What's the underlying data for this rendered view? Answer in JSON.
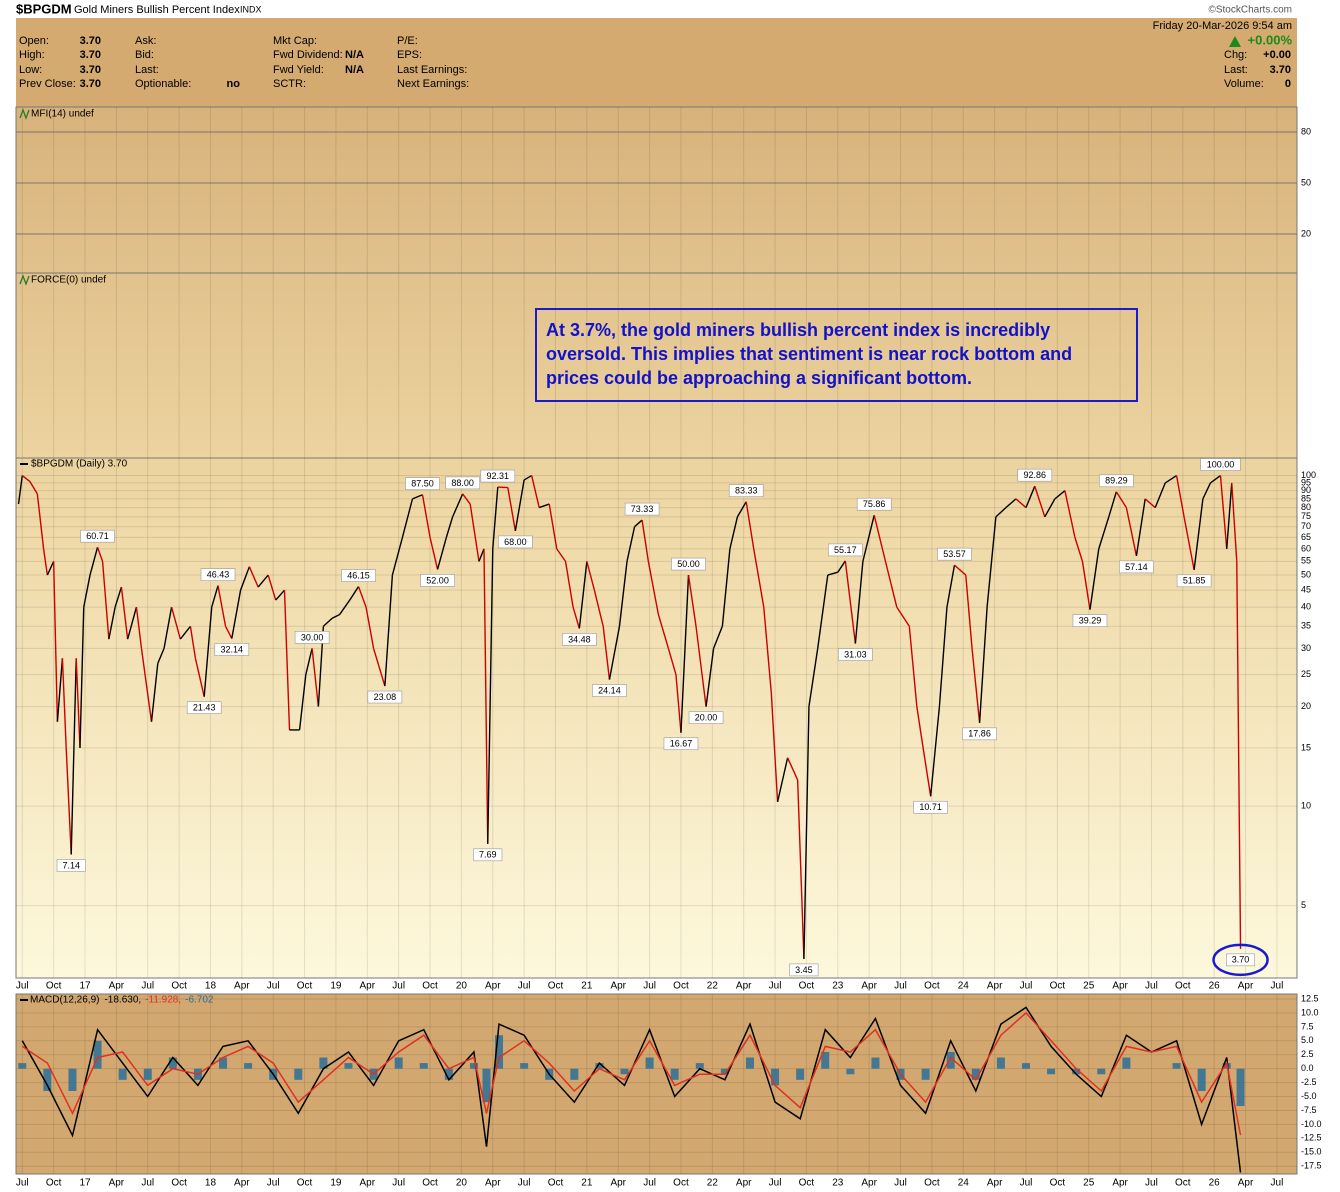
{
  "header": {
    "symbol": "$BPGDM",
    "name": "Gold Miners Bullish Percent Index",
    "exchange": "INDX",
    "date": "Friday  20-Mar-2026  9:54 am",
    "credit": "©StockCharts.com",
    "change": "+0.00%",
    "columns": [
      [
        {
          "label": "Open:",
          "value": "3.70"
        },
        {
          "label": "High:",
          "value": "3.70"
        },
        {
          "label": "Low:",
          "value": "3.70"
        },
        {
          "label": "Prev Close:",
          "value": "3.70"
        }
      ],
      [
        {
          "label": "Ask:"
        },
        {
          "label": "Bid:"
        },
        {
          "label": "Last:"
        },
        {
          "label": "Optionable:",
          "value": "no"
        }
      ],
      [
        {
          "label": "Mkt Cap:"
        },
        {
          "label": "Fwd Dividend:",
          "value": "N/A"
        },
        {
          "label": "Fwd Yield:",
          "value": "N/A"
        },
        {
          "label": "SCTR:"
        }
      ],
      [
        {
          "label": "P/E:"
        },
        {
          "label": "EPS:"
        },
        {
          "label": "Last Earnings:"
        },
        {
          "label": "Next Earnings:"
        }
      ]
    ],
    "right": [
      {
        "label": "Chg:",
        "value": "+0.00"
      },
      {
        "label": "Last:",
        "value": "3.70"
      },
      {
        "label": "Volume:",
        "value": "0"
      }
    ]
  },
  "chart_data": [
    {
      "type": "indicator",
      "title": "MFI(14) undef",
      "ylim": [
        -2.9,
        94.7
      ],
      "yticks": [
        20,
        50,
        80
      ]
    },
    {
      "type": "indicator",
      "title": "FORCE(0) undef",
      "annotation": "At 3.7%, the gold miners bullish percent index is incredibly oversold. This implies that sentiment is near rock bottom and prices could be approaching a significant bottom."
    },
    {
      "type": "line",
      "log_scale": true,
      "grid": true,
      "xlim": [
        2016.45,
        2026.66
      ],
      "ylim": [
        3.02,
        113
      ],
      "xticks": [
        {
          "value": 2016.5,
          "label": "Jul"
        },
        {
          "value": 2016.75,
          "label": "Oct"
        },
        {
          "value": 2017,
          "label": "17"
        },
        {
          "value": 2017.25,
          "label": "Apr"
        },
        {
          "value": 2017.5,
          "label": "Jul"
        },
        {
          "value": 2017.75,
          "label": "Oct"
        },
        {
          "value": 2018,
          "label": "18"
        },
        {
          "value": 2018.25,
          "label": "Apr"
        },
        {
          "value": 2018.5,
          "label": "Jul"
        },
        {
          "value": 2018.75,
          "label": "Oct"
        },
        {
          "value": 2019,
          "label": "19"
        },
        {
          "value": 2019.25,
          "label": "Apr"
        },
        {
          "value": 2019.5,
          "label": "Jul"
        },
        {
          "value": 2019.75,
          "label": "Oct"
        },
        {
          "value": 2020,
          "label": "20"
        },
        {
          "value": 2020.25,
          "label": "Apr"
        },
        {
          "value": 2020.5,
          "label": "Jul"
        },
        {
          "value": 2020.75,
          "label": "Oct"
        },
        {
          "value": 2021,
          "label": "21"
        },
        {
          "value": 2021.25,
          "label": "Apr"
        },
        {
          "value": 2021.5,
          "label": "Jul"
        },
        {
          "value": 2021.75,
          "label": "Oct"
        },
        {
          "value": 2022,
          "label": "22"
        },
        {
          "value": 2022.25,
          "label": "Apr"
        },
        {
          "value": 2022.5,
          "label": "Jul"
        },
        {
          "value": 2022.75,
          "label": "Oct"
        },
        {
          "value": 2023,
          "label": "23"
        },
        {
          "value": 2023.25,
          "label": "Apr"
        },
        {
          "value": 2023.5,
          "label": "Jul"
        },
        {
          "value": 2023.75,
          "label": "Oct"
        },
        {
          "value": 2024,
          "label": "24"
        },
        {
          "value": 2024.25,
          "label": "Apr"
        },
        {
          "value": 2024.5,
          "label": "Jul"
        },
        {
          "value": 2024.75,
          "label": "Oct"
        },
        {
          "value": 2025,
          "label": "25"
        },
        {
          "value": 2025.25,
          "label": "Apr"
        },
        {
          "value": 2025.5,
          "label": "Jul"
        },
        {
          "value": 2025.75,
          "label": "Oct"
        },
        {
          "value": 2026,
          "label": "26"
        },
        {
          "value": 2026.25,
          "label": "Apr"
        },
        {
          "value": 2026.5,
          "label": "Jul"
        }
      ],
      "yticks": [
        5,
        10,
        15,
        20,
        25,
        30,
        35,
        40,
        45,
        50,
        55,
        60,
        65,
        70,
        75,
        80,
        85,
        90,
        95,
        100
      ],
      "x": [
        2016.47,
        2016.5,
        2016.56,
        2016.62,
        2016.67,
        2016.7,
        2016.75,
        2016.78,
        2016.82,
        2016.85,
        2016.89,
        2016.93,
        2016.96,
        2016.99,
        2017.04,
        2017.1,
        2017.14,
        2017.19,
        2017.24,
        2017.29,
        2017.34,
        2017.41,
        2017.45,
        2017.53,
        2017.58,
        2017.63,
        2017.69,
        2017.76,
        2017.84,
        2017.88,
        2017.95,
        2018.01,
        2018.06,
        2018.12,
        2018.17,
        2018.24,
        2018.31,
        2018.38,
        2018.46,
        2018.52,
        2018.59,
        2018.63,
        2018.71,
        2018.76,
        2018.81,
        2018.86,
        2018.9,
        2018.97,
        2019.03,
        2019.11,
        2019.18,
        2019.24,
        2019.3,
        2019.39,
        2019.45,
        2019.53,
        2019.61,
        2019.69,
        2019.75,
        2019.81,
        2019.88,
        2019.93,
        2020.01,
        2020.07,
        2020.14,
        2020.18,
        2020.21,
        2020.25,
        2020.29,
        2020.37,
        2020.43,
        2020.5,
        2020.56,
        2020.62,
        2020.7,
        2020.76,
        2020.83,
        2020.89,
        2020.94,
        2021.0,
        2021.06,
        2021.13,
        2021.18,
        2021.26,
        2021.32,
        2021.38,
        2021.44,
        2021.49,
        2021.57,
        2021.65,
        2021.71,
        2021.75,
        2021.81,
        2021.87,
        2021.95,
        2022.01,
        2022.08,
        2022.14,
        2022.2,
        2022.27,
        2022.33,
        2022.41,
        2022.47,
        2022.52,
        2022.6,
        2022.68,
        2022.73,
        2022.77,
        2022.84,
        2022.92,
        2023.0,
        2023.06,
        2023.14,
        2023.2,
        2023.29,
        2023.38,
        2023.47,
        2023.57,
        2023.63,
        2023.68,
        2023.74,
        2023.81,
        2023.87,
        2023.93,
        2024.02,
        2024.07,
        2024.13,
        2024.19,
        2024.26,
        2024.34,
        2024.42,
        2024.5,
        2024.57,
        2024.65,
        2024.73,
        2024.81,
        2024.89,
        2024.95,
        2025.01,
        2025.08,
        2025.16,
        2025.22,
        2025.3,
        2025.38,
        2025.45,
        2025.53,
        2025.61,
        2025.7,
        2025.76,
        2025.84,
        2025.91,
        2025.97,
        2026.05,
        2026.1,
        2026.14,
        2026.18,
        2026.21
      ],
      "series": [
        {
          "name": "$BPGDM (Daily) 3.70",
          "up_color": "#000000",
          "down_color": "#cc0000",
          "values": [
            82,
            100,
            96,
            88,
            60,
            50,
            55,
            18,
            28,
            15,
            7.14,
            28,
            15,
            40,
            50,
            60.71,
            55,
            32,
            40,
            46,
            32,
            40,
            30,
            18,
            27,
            30,
            40,
            32,
            35,
            28,
            21.43,
            40,
            46.43,
            35,
            32.14,
            45,
            53,
            46,
            50,
            42,
            45,
            17,
            17,
            25,
            30,
            20,
            35,
            37,
            38,
            42,
            46.15,
            40,
            30,
            23.08,
            50,
            65,
            85,
            87.5,
            65,
            52,
            65,
            75,
            88,
            82,
            55,
            60,
            7.69,
            60,
            92.31,
            92,
            68,
            97,
            100,
            80,
            82,
            60,
            55,
            40,
            34.48,
            55,
            45,
            35,
            24.14,
            35,
            55,
            70,
            73.33,
            55,
            38,
            30,
            25,
            16.67,
            50,
            35,
            20,
            30,
            35,
            60,
            75,
            83.33,
            60,
            40,
            22,
            10.3,
            14,
            12,
            3.45,
            20,
            30,
            50,
            51,
            55.17,
            31.03,
            55,
            75.86,
            55,
            40,
            35,
            20,
            15,
            10.71,
            20,
            40,
            53.57,
            50,
            30,
            17.86,
            40,
            75,
            80,
            85,
            80,
            92.86,
            75,
            85,
            90,
            65,
            55,
            39.29,
            60,
            75,
            89.29,
            80,
            57.14,
            85,
            80,
            95,
            100,
            75,
            51.85,
            85,
            95,
            100,
            60,
            95,
            55,
            3.7
          ],
          "value_labels": [
            null,
            null,
            null,
            null,
            null,
            null,
            null,
            null,
            null,
            null,
            "7.14",
            null,
            null,
            null,
            null,
            "60.71",
            null,
            null,
            null,
            null,
            null,
            null,
            null,
            null,
            null,
            null,
            null,
            null,
            null,
            null,
            "21.43",
            null,
            "46.43",
            null,
            "32.14",
            null,
            null,
            null,
            null,
            null,
            null,
            null,
            null,
            null,
            "30.00",
            null,
            null,
            null,
            null,
            null,
            "46.15",
            null,
            null,
            "23.08",
            null,
            null,
            null,
            "87.50",
            null,
            "52.00",
            null,
            null,
            "88.00",
            null,
            null,
            null,
            "7.69",
            null,
            "92.31",
            null,
            "68.00",
            null,
            null,
            null,
            null,
            null,
            null,
            null,
            "34.48",
            null,
            null,
            null,
            "24.14",
            null,
            null,
            null,
            "73.33",
            null,
            null,
            null,
            null,
            "16.67",
            "50.00",
            null,
            "20.00",
            null,
            null,
            null,
            null,
            "83.33",
            null,
            null,
            null,
            null,
            null,
            null,
            "3.45",
            null,
            null,
            null,
            null,
            "55.17",
            "31.03",
            null,
            "75.86",
            null,
            null,
            null,
            null,
            null,
            "10.71",
            null,
            null,
            "53.57",
            null,
            null,
            "17.86",
            null,
            null,
            null,
            null,
            null,
            "92.86",
            null,
            null,
            null,
            null,
            null,
            "39.29",
            null,
            null,
            "89.29",
            null,
            "57.14",
            null,
            null,
            null,
            null,
            null,
            "51.85",
            null,
            null,
            "100.00",
            null,
            null,
            null,
            "3.70"
          ]
        }
      ]
    },
    {
      "type": "macd",
      "title": "MACD(12,26,9)",
      "ylim": [
        -18.9,
        13.4
      ],
      "grid": true,
      "yticks": [
        -17.5,
        {
          "value": -15,
          "label": "-15.0"
        },
        -12.5,
        {
          "value": -10,
          "label": "-10.0"
        },
        -7.5,
        {
          "value": -5,
          "label": "-5.0"
        },
        -2.5,
        {
          "value": 0,
          "label": "0.0"
        },
        2.5,
        {
          "value": 5,
          "label": "5.0"
        },
        7.5,
        {
          "value": 10,
          "label": "10.0"
        },
        12.5
      ],
      "x": [
        2016.5,
        2016.7,
        2016.9,
        2017.1,
        2017.3,
        2017.5,
        2017.7,
        2017.9,
        2018.1,
        2018.3,
        2018.5,
        2018.7,
        2018.9,
        2019.1,
        2019.3,
        2019.5,
        2019.7,
        2019.9,
        2020.1,
        2020.2,
        2020.3,
        2020.5,
        2020.7,
        2020.9,
        2021.1,
        2021.3,
        2021.5,
        2021.7,
        2021.9,
        2022.1,
        2022.3,
        2022.5,
        2022.7,
        2022.9,
        2023.1,
        2023.3,
        2023.5,
        2023.7,
        2023.9,
        2024.1,
        2024.3,
        2024.5,
        2024.7,
        2024.9,
        2025.1,
        2025.3,
        2025.5,
        2025.7,
        2025.9,
        2026.1,
        2026.21
      ],
      "series": [
        {
          "label": "-18.630,",
          "color": "#000000",
          "style": "line",
          "values": [
            5,
            -3,
            -12,
            7,
            1,
            -5,
            2,
            -3,
            4,
            5,
            -1,
            -8,
            0,
            3,
            -3,
            5,
            7,
            -2,
            3,
            -14,
            8,
            6,
            -1,
            -6,
            1,
            -3,
            7,
            -5,
            0,
            -2,
            8,
            -6,
            -9,
            7,
            2,
            9,
            -3,
            -8,
            5,
            -4,
            8,
            11,
            4,
            -1,
            -5,
            6,
            3,
            5,
            -10,
            2,
            -18.63
          ]
        },
        {
          "label": "-11.928,",
          "color": "#e0301e",
          "style": "line",
          "values": [
            4,
            1,
            -8,
            2,
            3,
            -3,
            0,
            -1,
            2,
            4,
            1,
            -6,
            -2,
            2,
            -1,
            3,
            6,
            0,
            2,
            -8,
            2,
            5,
            1,
            -4,
            0,
            -2,
            5,
            -3,
            -1,
            -1,
            6,
            -3,
            -7,
            4,
            3,
            7,
            -1,
            -6,
            2,
            -2,
            6,
            10,
            5,
            0,
            -4,
            4,
            3,
            4,
            -6,
            1,
            -11.928
          ]
        },
        {
          "label": "-6.702",
          "color": "#2a6f97",
          "style": "histogram",
          "values": [
            1,
            -4,
            -4,
            5,
            -2,
            -2,
            2,
            -2,
            2,
            1,
            -2,
            -2,
            2,
            1,
            -2,
            2,
            1,
            -2,
            1,
            -6,
            6,
            1,
            -2,
            -2,
            1,
            -1,
            2,
            -2,
            1,
            -1,
            2,
            -3,
            -2,
            3,
            -1,
            2,
            -2,
            -2,
            3,
            -2,
            2,
            1,
            -1,
            -1,
            -1,
            2,
            0,
            1,
            -4,
            1,
            -6.702
          ]
        }
      ]
    }
  ]
}
